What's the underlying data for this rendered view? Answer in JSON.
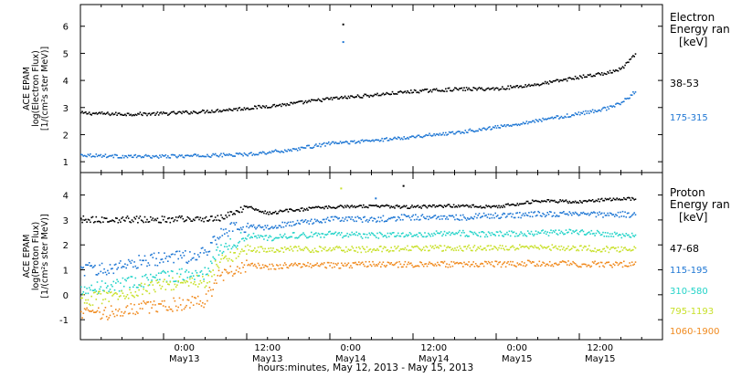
{
  "colors": {
    "frame": "#000000",
    "black": "#000000",
    "blue": "#1f77d4",
    "cyan": "#22d3c8",
    "yellow": "#c8e02a",
    "orange": "#f08a1e"
  },
  "x_axis": {
    "label": "hours:minutes, May 12, 2013 - May 15, 2013",
    "ticks": [
      {
        "time": "0:00",
        "day": "May13"
      },
      {
        "time": "12:00",
        "day": "May13"
      },
      {
        "time": "0:00",
        "day": "May14"
      },
      {
        "time": "12:00",
        "day": "May14"
      },
      {
        "time": "0:00",
        "day": "May15"
      },
      {
        "time": "12:00",
        "day": "May15"
      }
    ]
  },
  "chart_data": [
    {
      "type": "scatter",
      "ylabel_lines": [
        "ACE EPAM",
        "log(Electron Flux)",
        "[1/(cm²s ster MeV)]"
      ],
      "ylim": [
        0.6,
        6.8
      ],
      "yticks": [
        1,
        2,
        3,
        4,
        5,
        6
      ],
      "xlim_hours": [
        0,
        84
      ],
      "legend": {
        "title_lines": [
          "Electron",
          "Energy ran"
        ],
        "unit": "[keV]"
      },
      "series": [
        {
          "name": "38-53",
          "color_key": "black",
          "points": [
            [
              0,
              2.82
            ],
            [
              6,
              2.78
            ],
            [
              12,
              2.8
            ],
            [
              18,
              2.88
            ],
            [
              24,
              3.0
            ],
            [
              30,
              3.15
            ],
            [
              36,
              3.35
            ],
            [
              42,
              3.48
            ],
            [
              48,
              3.62
            ],
            [
              54,
              3.7
            ],
            [
              60,
              3.72
            ],
            [
              66,
              3.88
            ],
            [
              72,
              4.15
            ],
            [
              76,
              4.3
            ],
            [
              78,
              4.45
            ],
            [
              79.5,
              4.85
            ],
            [
              80,
              4.95
            ]
          ]
        },
        {
          "name": "175-315",
          "color_key": "blue",
          "points": [
            [
              0,
              1.28
            ],
            [
              6,
              1.22
            ],
            [
              12,
              1.22
            ],
            [
              18,
              1.25
            ],
            [
              24,
              1.3
            ],
            [
              30,
              1.45
            ],
            [
              36,
              1.7
            ],
            [
              42,
              1.8
            ],
            [
              48,
              1.95
            ],
            [
              54,
              2.1
            ],
            [
              60,
              2.3
            ],
            [
              66,
              2.55
            ],
            [
              72,
              2.8
            ],
            [
              76,
              3.0
            ],
            [
              78,
              3.2
            ],
            [
              79.5,
              3.5
            ],
            [
              80,
              3.65
            ]
          ]
        }
      ],
      "outliers": [
        {
          "color_key": "black",
          "x": 37.8,
          "y": 6.1
        },
        {
          "color_key": "blue",
          "x": 37.8,
          "y": 5.45
        }
      ]
    },
    {
      "type": "scatter",
      "ylabel_lines": [
        "ACE EPAM",
        "log(Proton Flux)",
        "[1/(cm²s ster MeV)]"
      ],
      "ylim": [
        -1.8,
        4.9
      ],
      "yticks": [
        -1,
        0,
        1,
        2,
        3,
        4
      ],
      "xlim_hours": [
        0,
        84
      ],
      "legend": {
        "title_lines": [
          "Proton",
          "Energy ran"
        ],
        "unit": "[keV]"
      },
      "series": [
        {
          "name": "47-68",
          "color_key": "black",
          "points": [
            [
              0,
              3.05
            ],
            [
              6,
              3.05
            ],
            [
              12,
              3.05
            ],
            [
              18,
              3.08
            ],
            [
              20,
              3.1
            ],
            [
              22,
              3.3
            ],
            [
              24,
              3.55
            ],
            [
              27,
              3.3
            ],
            [
              30,
              3.4
            ],
            [
              36,
              3.55
            ],
            [
              42,
              3.58
            ],
            [
              48,
              3.55
            ],
            [
              54,
              3.6
            ],
            [
              60,
              3.55
            ],
            [
              66,
              3.8
            ],
            [
              72,
              3.75
            ],
            [
              76,
              3.85
            ],
            [
              80,
              3.88
            ]
          ]
        },
        {
          "name": "115-195",
          "color_key": "blue",
          "points": [
            [
              0,
              1.05
            ],
            [
              4,
              1.08
            ],
            [
              8,
              1.35
            ],
            [
              12,
              1.5
            ],
            [
              16,
              1.55
            ],
            [
              18,
              1.7
            ],
            [
              20,
              2.5
            ],
            [
              22,
              2.7
            ],
            [
              24,
              2.8
            ],
            [
              27,
              2.7
            ],
            [
              30,
              2.9
            ],
            [
              36,
              3.05
            ],
            [
              42,
              3.05
            ],
            [
              48,
              3.15
            ],
            [
              54,
              3.12
            ],
            [
              60,
              3.2
            ],
            [
              66,
              3.25
            ],
            [
              72,
              3.3
            ],
            [
              76,
              3.25
            ],
            [
              80,
              3.25
            ]
          ]
        },
        {
          "name": "310-580",
          "color_key": "cyan",
          "points": [
            [
              0,
              0.25
            ],
            [
              4,
              0.35
            ],
            [
              8,
              0.55
            ],
            [
              12,
              0.75
            ],
            [
              16,
              0.85
            ],
            [
              18,
              0.9
            ],
            [
              20,
              1.9
            ],
            [
              22,
              2.1
            ],
            [
              24,
              2.4
            ],
            [
              27,
              2.3
            ],
            [
              30,
              2.4
            ],
            [
              36,
              2.45
            ],
            [
              42,
              2.4
            ],
            [
              48,
              2.45
            ],
            [
              54,
              2.5
            ],
            [
              60,
              2.45
            ],
            [
              66,
              2.5
            ],
            [
              72,
              2.55
            ],
            [
              76,
              2.45
            ],
            [
              80,
              2.4
            ]
          ]
        },
        {
          "name": "795-1193",
          "color_key": "yellow",
          "points": [
            [
              0,
              -0.2
            ],
            [
              4,
              -0.05
            ],
            [
              8,
              0.2
            ],
            [
              12,
              0.45
            ],
            [
              16,
              0.55
            ],
            [
              18,
              0.55
            ],
            [
              20,
              1.4
            ],
            [
              22,
              1.55
            ],
            [
              24,
              1.9
            ],
            [
              27,
              1.8
            ],
            [
              30,
              1.85
            ],
            [
              36,
              1.85
            ],
            [
              42,
              1.85
            ],
            [
              48,
              1.9
            ],
            [
              54,
              1.9
            ],
            [
              60,
              1.9
            ],
            [
              66,
              1.95
            ],
            [
              72,
              1.9
            ],
            [
              76,
              1.85
            ],
            [
              80,
              1.85
            ]
          ]
        },
        {
          "name": "1060-1900",
          "color_key": "orange",
          "points": [
            [
              0,
              -0.75
            ],
            [
              4,
              -0.7
            ],
            [
              8,
              -0.5
            ],
            [
              12,
              -0.4
            ],
            [
              16,
              -0.3
            ],
            [
              18,
              -0.2
            ],
            [
              20,
              0.8
            ],
            [
              22,
              1.0
            ],
            [
              24,
              1.2
            ],
            [
              27,
              1.15
            ],
            [
              30,
              1.2
            ],
            [
              36,
              1.2
            ],
            [
              42,
              1.25
            ],
            [
              48,
              1.25
            ],
            [
              54,
              1.25
            ],
            [
              60,
              1.25
            ],
            [
              66,
              1.3
            ],
            [
              72,
              1.25
            ],
            [
              76,
              1.25
            ],
            [
              80,
              1.25
            ]
          ]
        }
      ],
      "outliers": [
        {
          "color_key": "yellow",
          "x": 37.5,
          "y": 4.3
        },
        {
          "color_key": "black",
          "x": 46.5,
          "y": 4.4
        },
        {
          "color_key": "blue",
          "x": 42.5,
          "y": 3.9
        }
      ]
    }
  ]
}
